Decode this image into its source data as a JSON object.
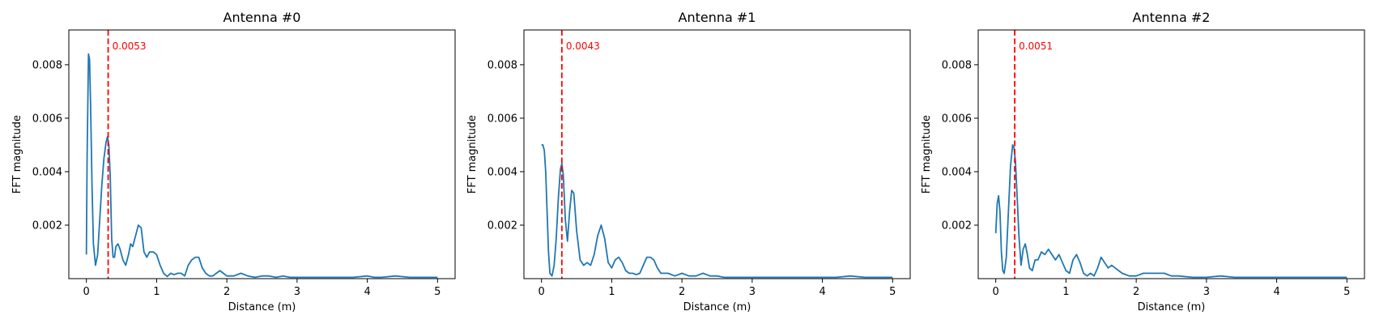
{
  "colors": {
    "line": "#1f77b4",
    "marker": "#ff0000",
    "frame": "#000000"
  },
  "chart_data": [
    {
      "type": "line",
      "title": "Antenna #0",
      "xlabel": "Distance (m)",
      "ylabel": "FFT magnitude",
      "xlim": [
        -0.25,
        5.25
      ],
      "ylim": [
        0.0,
        0.0093
      ],
      "xticks": [
        0,
        1,
        2,
        3,
        4,
        5
      ],
      "xtick_labels": [
        "0",
        "1",
        "2",
        "3",
        "4",
        "5"
      ],
      "yticks": [
        0.002,
        0.004,
        0.006,
        0.008
      ],
      "ytick_labels": [
        "0.002",
        "0.004",
        "0.006",
        "0.008"
      ],
      "grid": false,
      "peak": {
        "x": 0.31,
        "label": "0.0053"
      },
      "series": [
        {
          "x": [
            0,
            0.01,
            0.03,
            0.045,
            0.06,
            0.08,
            0.1,
            0.13,
            0.16,
            0.19,
            0.22,
            0.25,
            0.28,
            0.3,
            0.32,
            0.34,
            0.36,
            0.38,
            0.4,
            0.42,
            0.45,
            0.48,
            0.52,
            0.56,
            0.6,
            0.63,
            0.66,
            0.7,
            0.74,
            0.78,
            0.82,
            0.86,
            0.9,
            0.95,
            1.0,
            1.05,
            1.1,
            1.15,
            1.2,
            1.25,
            1.3,
            1.35,
            1.4,
            1.45,
            1.5,
            1.55,
            1.6,
            1.65,
            1.7,
            1.75,
            1.8,
            1.85,
            1.9,
            1.95,
            2.0,
            2.1,
            2.2,
            2.3,
            2.4,
            2.5,
            2.6,
            2.7,
            2.8,
            2.9,
            3.0,
            3.2,
            3.4,
            3.6,
            3.8,
            4.0,
            4.1,
            4.2,
            4.4,
            4.6,
            4.8,
            5.0
          ],
          "y": [
            0.0009,
            0.0045,
            0.0084,
            0.0082,
            0.0065,
            0.0035,
            0.0013,
            0.0005,
            0.0009,
            0.0022,
            0.0035,
            0.0045,
            0.0051,
            0.0053,
            0.005,
            0.0038,
            0.0015,
            0.0008,
            0.0008,
            0.0012,
            0.0013,
            0.0011,
            0.0007,
            0.0005,
            0.0009,
            0.0013,
            0.0012,
            0.0016,
            0.002,
            0.0019,
            0.001,
            0.0008,
            0.001,
            0.001,
            0.0009,
            0.0005,
            0.0002,
            8e-05,
            0.0002,
            0.00015,
            0.0002,
            0.0002,
            0.0001,
            0.0005,
            0.0007,
            0.0008,
            0.0008,
            0.0004,
            0.0002,
            0.0001,
            0.0001,
            0.0002,
            0.0003,
            0.0002,
            0.0001,
            0.0001,
            0.0002,
            0.0001,
            5e-05,
            0.0001,
            0.0001,
            5e-05,
            0.0001,
            5e-05,
            5e-05,
            5e-05,
            5e-05,
            5e-05,
            5e-05,
            0.0001,
            5e-05,
            5e-05,
            0.0001,
            5e-05,
            5e-05,
            5e-05
          ]
        }
      ]
    },
    {
      "type": "line",
      "title": "Antenna #1",
      "xlabel": "Distance (m)",
      "ylabel": "FFT magnitude",
      "xlim": [
        -0.25,
        5.25
      ],
      "ylim": [
        0.0,
        0.0093
      ],
      "xticks": [
        0,
        1,
        2,
        3,
        4,
        5
      ],
      "xtick_labels": [
        "0",
        "1",
        "2",
        "3",
        "4",
        "5"
      ],
      "yticks": [
        0.002,
        0.004,
        0.006,
        0.008
      ],
      "ytick_labels": [
        "0.002",
        "0.004",
        "0.006",
        "0.008"
      ],
      "grid": false,
      "peak": {
        "x": 0.29,
        "label": "0.0043"
      },
      "series": [
        {
          "x": [
            0,
            0.02,
            0.04,
            0.06,
            0.08,
            0.1,
            0.12,
            0.15,
            0.18,
            0.21,
            0.24,
            0.27,
            0.29,
            0.31,
            0.34,
            0.37,
            0.4,
            0.43,
            0.46,
            0.5,
            0.55,
            0.6,
            0.65,
            0.7,
            0.75,
            0.8,
            0.85,
            0.9,
            0.95,
            1.0,
            1.05,
            1.1,
            1.15,
            1.2,
            1.25,
            1.3,
            1.35,
            1.4,
            1.45,
            1.5,
            1.55,
            1.6,
            1.65,
            1.7,
            1.8,
            1.9,
            2.0,
            2.1,
            2.2,
            2.3,
            2.4,
            2.5,
            2.6,
            2.8,
            3.0,
            3.2,
            3.4,
            3.6,
            3.8,
            4.0,
            4.2,
            4.4,
            4.6,
            4.8,
            5.0
          ],
          "y": [
            0.005,
            0.005,
            0.0048,
            0.004,
            0.0025,
            0.001,
            0.0002,
            0.0001,
            0.0005,
            0.0015,
            0.003,
            0.0041,
            0.0043,
            0.0039,
            0.0022,
            0.0014,
            0.0025,
            0.0033,
            0.0032,
            0.0018,
            0.0007,
            0.0005,
            0.0006,
            0.0005,
            0.0009,
            0.0016,
            0.002,
            0.0015,
            0.0006,
            0.0004,
            0.0007,
            0.0008,
            0.0006,
            0.0003,
            0.0002,
            0.0002,
            0.00015,
            0.0002,
            0.0005,
            0.0008,
            0.0008,
            0.0007,
            0.0004,
            0.0002,
            0.0002,
            0.0001,
            0.0002,
            0.0001,
            0.0001,
            0.0002,
            0.0001,
            0.0001,
            5e-05,
            5e-05,
            5e-05,
            5e-05,
            5e-05,
            5e-05,
            5e-05,
            5e-05,
            5e-05,
            0.0001,
            5e-05,
            5e-05,
            5e-05
          ]
        }
      ]
    },
    {
      "type": "line",
      "title": "Antenna #2",
      "xlabel": "Distance (m)",
      "ylabel": "FFT magnitude",
      "xlim": [
        -0.25,
        5.25
      ],
      "ylim": [
        0.0,
        0.0093
      ],
      "xticks": [
        0,
        1,
        2,
        3,
        4,
        5
      ],
      "xtick_labels": [
        "0",
        "1",
        "2",
        "3",
        "4",
        "5"
      ],
      "yticks": [
        0.002,
        0.004,
        0.006,
        0.008
      ],
      "ytick_labels": [
        "0.002",
        "0.004",
        "0.006",
        "0.008"
      ],
      "grid": false,
      "peak": {
        "x": 0.27,
        "label": "0.0051"
      },
      "series": [
        {
          "x": [
            0,
            0.02,
            0.04,
            0.06,
            0.08,
            0.1,
            0.12,
            0.15,
            0.18,
            0.21,
            0.24,
            0.26,
            0.28,
            0.3,
            0.33,
            0.36,
            0.39,
            0.42,
            0.45,
            0.48,
            0.52,
            0.56,
            0.6,
            0.65,
            0.7,
            0.75,
            0.8,
            0.85,
            0.9,
            0.95,
            1.0,
            1.05,
            1.1,
            1.15,
            1.2,
            1.25,
            1.3,
            1.35,
            1.4,
            1.45,
            1.5,
            1.55,
            1.6,
            1.65,
            1.7,
            1.8,
            1.9,
            2.0,
            2.1,
            2.2,
            2.3,
            2.4,
            2.5,
            2.6,
            2.8,
            3.0,
            3.2,
            3.4,
            3.6,
            3.8,
            4.0,
            4.2,
            4.4,
            4.6,
            4.8,
            5.0
          ],
          "y": [
            0.0017,
            0.0028,
            0.0031,
            0.0025,
            0.001,
            0.0003,
            0.0002,
            0.0008,
            0.0025,
            0.0042,
            0.005,
            0.0049,
            0.0044,
            0.0033,
            0.0016,
            0.0005,
            0.0011,
            0.0013,
            0.0009,
            0.0004,
            0.0003,
            0.0007,
            0.0007,
            0.001,
            0.0009,
            0.0011,
            0.0009,
            0.0007,
            0.0009,
            0.0006,
            0.0003,
            0.0002,
            0.0007,
            0.0009,
            0.0006,
            0.0002,
            0.0001,
            0.0002,
            0.0001,
            0.0004,
            0.0008,
            0.0006,
            0.0004,
            0.0005,
            0.0004,
            0.0002,
            0.0001,
            0.0001,
            0.0002,
            0.0002,
            0.0002,
            0.0002,
            0.0001,
            0.0001,
            5e-05,
            5e-05,
            0.0001,
            5e-05,
            5e-05,
            5e-05,
            5e-05,
            5e-05,
            5e-05,
            5e-05,
            5e-05,
            5e-05
          ]
        }
      ]
    }
  ]
}
